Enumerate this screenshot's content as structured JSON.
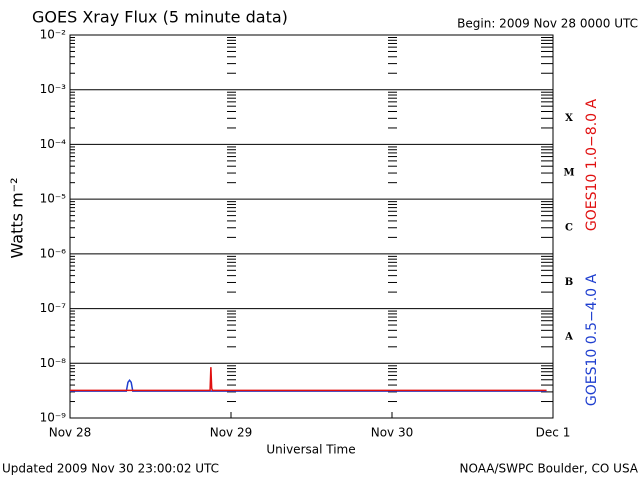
{
  "chart_data": {
    "type": "line",
    "title": "GOES Xray Flux (5 minute data)",
    "subtitle": "Begin:  2009 Nov 28 0000 UTC",
    "x_label": "Universal Time",
    "y_label": "Watts m⁻²",
    "footer_left": "Updated 2009 Nov 30 23:00:02 UTC",
    "footer_right": "NOAA/SWPC Boulder, CO USA",
    "yscale": "log",
    "grid": true,
    "xlim": [
      0,
      3
    ],
    "xticks": [
      {
        "value": 0,
        "label": "Nov 28"
      },
      {
        "value": 1,
        "label": "Nov 29"
      },
      {
        "value": 2,
        "label": "Nov 30"
      },
      {
        "value": 3,
        "label": "Dec 1"
      }
    ],
    "ylim": [
      1e-09,
      0.01
    ],
    "yticks": [
      {
        "value": 1e-09,
        "label": "10⁻⁹"
      },
      {
        "value": 1e-08,
        "label": "10⁻⁸"
      },
      {
        "value": 1e-07,
        "label": "10⁻⁷"
      },
      {
        "value": 1e-06,
        "label": "10⁻⁶"
      },
      {
        "value": 1e-05,
        "label": "10⁻⁵"
      },
      {
        "value": 0.0001,
        "label": "10⁻⁴"
      },
      {
        "value": 0.001,
        "label": "10⁻³"
      },
      {
        "value": 0.01,
        "label": "10⁻²"
      }
    ],
    "flare_classes": [
      {
        "label": "A",
        "value": 3e-08
      },
      {
        "label": "B",
        "value": 3e-07
      },
      {
        "label": "C",
        "value": 3e-06
      },
      {
        "label": "M",
        "value": 3e-05
      },
      {
        "label": "X",
        "value": 0.0003
      }
    ],
    "series": [
      {
        "name": "GOES10 0.5−4.0 A",
        "color": "#1f3fcf",
        "x": [
          0,
          0.35,
          0.36,
          0.37,
          0.38,
          0.39,
          2.96
        ],
        "values": [
          3.1e-09,
          3.1e-09,
          4.5e-09,
          4.9e-09,
          4.5e-09,
          3.1e-09,
          3.1e-09
        ]
      },
      {
        "name": "GOES10 1.0−8.0 A",
        "color": "#e01010",
        "x": [
          0,
          0.87,
          0.875,
          0.88,
          0.885,
          2.96
        ],
        "values": [
          3.2e-09,
          3.2e-09,
          8.5e-09,
          3.5e-09,
          3.2e-09,
          3.2e-09
        ]
      }
    ]
  }
}
